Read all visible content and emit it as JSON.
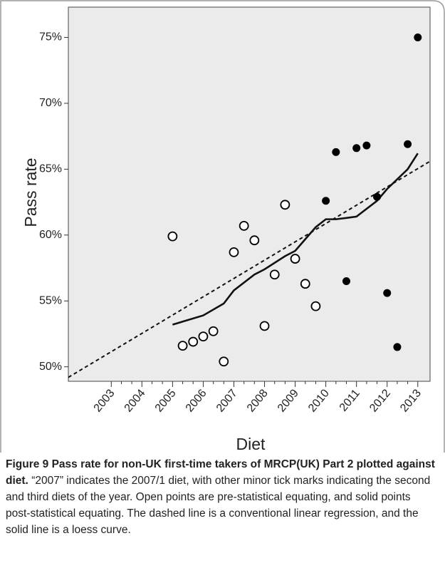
{
  "chart_data": {
    "type": "scatter",
    "ylabel": "Pass rate",
    "xlabel": "Diet",
    "xlim": [
      2001.6,
      2013.4
    ],
    "ylim": [
      48.9,
      77.3
    ],
    "xticks": [
      2003,
      2004,
      2005,
      2006,
      2007,
      2008,
      2009,
      2010,
      2011,
      2012,
      2013
    ],
    "xticks_minor": [
      2003.33,
      2003.67,
      2004.33,
      2004.67,
      2005.33,
      2005.67,
      2006.33,
      2006.67,
      2007.33,
      2007.67,
      2008.33,
      2008.67,
      2009.33,
      2009.67,
      2010.33,
      2010.67,
      2011.33,
      2011.67,
      2012.33,
      2012.67
    ],
    "yticks": [
      {
        "value": 50,
        "label": "50%"
      },
      {
        "value": 55,
        "label": "55%"
      },
      {
        "value": 60,
        "label": "60%"
      },
      {
        "value": 65,
        "label": "65%"
      },
      {
        "value": 70,
        "label": "70%"
      },
      {
        "value": 75,
        "label": "75%"
      }
    ],
    "series": [
      {
        "marker": "open",
        "color": "#000000",
        "x": [
          2005,
          2005.33,
          2005.67,
          2006,
          2006.33,
          2006.67,
          2007,
          2007.33,
          2007.67,
          2008,
          2008.33,
          2008.67,
          2009,
          2009.33,
          2009.67
        ],
        "values": [
          59.9,
          51.6,
          51.9,
          52.3,
          52.7,
          50.4,
          58.7,
          60.7,
          59.6,
          53.1,
          57.0,
          62.3,
          58.2,
          56.3,
          54.6
        ]
      },
      {
        "marker": "filled",
        "color": "#000000",
        "x": [
          2010,
          2010.33,
          2010.67,
          2011,
          2011.33,
          2011.67,
          2012,
          2012.33,
          2012.67,
          2013
        ],
        "values": [
          62.6,
          66.3,
          56.5,
          66.6,
          66.8,
          62.9,
          55.6,
          51.5,
          66.9,
          75.0
        ]
      }
    ],
    "lines": [
      {
        "style": "dashed",
        "x": [
          2001.6,
          2013.4
        ],
        "values": [
          49.2,
          65.6
        ]
      },
      {
        "style": "solid",
        "x": [
          2005,
          2006,
          2006.67,
          2007,
          2007.67,
          2008,
          2008.67,
          2009,
          2009.67,
          2010,
          2010.33,
          2010.67,
          2011,
          2011.67,
          2012,
          2012.67,
          2013
        ],
        "values": [
          53.2,
          53.9,
          54.8,
          55.8,
          57.0,
          57.4,
          58.4,
          58.8,
          60.6,
          61.2,
          61.2,
          61.3,
          61.4,
          62.6,
          63.5,
          65.0,
          66.2
        ]
      }
    ]
  },
  "caption": {
    "title": "Figure 9 Pass rate for non-UK first-time takers of MRCP(UK) Part 2 plotted against diet.",
    "text": "“2007” indicates the 2007/1 diet, with other minor tick marks indicating the second and third diets of the year. Open points are pre-statistical equating, and solid points post-statistical equating. The dashed line is a conventional linear regression, and the solid line is a loess curve."
  }
}
